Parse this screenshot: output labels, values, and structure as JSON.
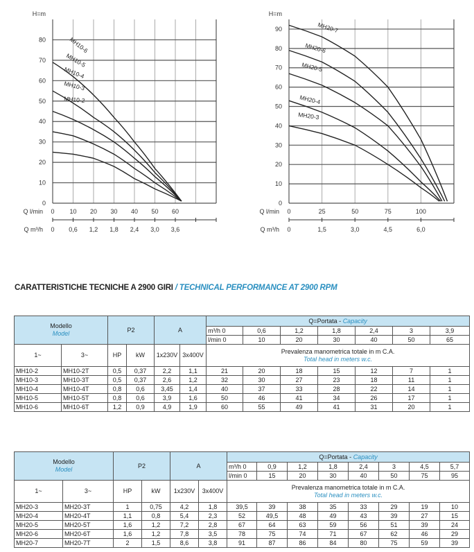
{
  "section_title": {
    "it": "CARATTERISTICHE TECNICHE A 2900 GIRI",
    "en": "/ TECHNICAL PERFORMANCE AT 2900 RPM"
  },
  "colors": {
    "accent": "#2a8fc0",
    "header_bg": "#c6e4f3"
  },
  "chart_data": [
    {
      "type": "line",
      "ylabel": "H=m",
      "xlabel": "Q l/min",
      "x2label": "Q m³/h",
      "ylim": [
        0,
        90
      ],
      "xlim": [
        0,
        80
      ],
      "yticks": [
        "0",
        "10",
        "20",
        "30",
        "40",
        "50",
        "60",
        "70",
        "80"
      ],
      "xticks": [
        "0",
        "10",
        "20",
        "30",
        "40",
        "50",
        "60"
      ],
      "x2ticks": [
        "0",
        "0,6",
        "1,2",
        "1,8",
        "2,4",
        "3,0",
        "3,6"
      ],
      "series": [
        {
          "name": "MH10-6",
          "x": [
            0,
            10,
            20,
            30,
            40,
            50,
            63
          ],
          "y": [
            69,
            62,
            53,
            42,
            30,
            17,
            1
          ]
        },
        {
          "name": "MH10-5",
          "x": [
            0,
            10,
            20,
            30,
            40,
            50,
            63
          ],
          "y": [
            55,
            49,
            42,
            35,
            26,
            15,
            1
          ]
        },
        {
          "name": "MH10-4",
          "x": [
            0,
            10,
            20,
            30,
            40,
            50,
            63
          ],
          "y": [
            45,
            41,
            36,
            30,
            22,
            13,
            1
          ]
        },
        {
          "name": "MH10-3",
          "x": [
            0,
            10,
            20,
            30,
            40,
            50,
            63
          ],
          "y": [
            35,
            33,
            29,
            24,
            17,
            10,
            1
          ]
        },
        {
          "name": "MH10-2",
          "x": [
            0,
            10,
            20,
            30,
            40,
            50,
            63
          ],
          "y": [
            25,
            24,
            22,
            18,
            12,
            7,
            1
          ]
        }
      ]
    },
    {
      "type": "line",
      "ylabel": "H=m",
      "xlabel": "Q l/min",
      "x2label": "Q m³/h",
      "ylim": [
        0,
        95
      ],
      "xlim": [
        0,
        125
      ],
      "yticks": [
        "0",
        "10",
        "20",
        "30",
        "40",
        "50",
        "60",
        "70",
        "80",
        "90"
      ],
      "xticks": [
        "0",
        "25",
        "50",
        "75",
        "100"
      ],
      "x2ticks": [
        "0",
        "1,5",
        "3,0",
        "4,5",
        "6,0"
      ],
      "series": [
        {
          "name": "MH20-7",
          "x": [
            0,
            25,
            50,
            75,
            100,
            120
          ],
          "y": [
            92,
            86,
            76,
            60,
            33,
            1
          ]
        },
        {
          "name": "MH20-6",
          "x": [
            0,
            25,
            50,
            75,
            100,
            118
          ],
          "y": [
            79,
            73,
            63,
            47,
            23,
            1
          ]
        },
        {
          "name": "MH20-5",
          "x": [
            0,
            25,
            50,
            75,
            100,
            116
          ],
          "y": [
            67,
            61,
            52,
            40,
            19,
            1
          ]
        },
        {
          "name": "MH20-4",
          "x": [
            0,
            25,
            50,
            75,
            100,
            115
          ],
          "y": [
            53,
            47,
            39,
            27,
            11,
            1
          ]
        },
        {
          "name": "MH20-3",
          "x": [
            0,
            25,
            50,
            75,
            100,
            114
          ],
          "y": [
            40,
            36,
            30,
            20,
            8,
            1
          ]
        }
      ]
    }
  ],
  "tables": [
    {
      "model_it": "Modello",
      "model_en": "Model",
      "p2": "P2",
      "a": "A",
      "capacity_it": "Q=Portata -",
      "capacity_en": "Capacity",
      "m3h_label": "m³/h 0",
      "lmin_label": "l/min 0",
      "m3h": [
        "0,6",
        "1,2",
        "1,8",
        "2,4",
        "3",
        "3,9"
      ],
      "lmin": [
        "10",
        "20",
        "30",
        "40",
        "50",
        "65"
      ],
      "cols": [
        "1~",
        "3~",
        "HP",
        "kW",
        "1x230V",
        "3x400V"
      ],
      "head_it": "Prevalenza manometrica totale in m C.A.",
      "head_en": "Total head in meters w.c.",
      "rows": [
        [
          "MH10-2",
          "MH10-2T",
          "0,5",
          "0,37",
          "2,2",
          "1,1",
          "21",
          "20",
          "18",
          "15",
          "12",
          "7",
          "1"
        ],
        [
          "MH10-3",
          "MH10-3T",
          "0,5",
          "0,37",
          "2,6",
          "1,2",
          "32",
          "30",
          "27",
          "23",
          "18",
          "11",
          "1"
        ],
        [
          "MH10-4",
          "MH10-4T",
          "0,8",
          "0,6",
          "3,45",
          "1,4",
          "40",
          "37",
          "33",
          "28",
          "22",
          "14",
          "1"
        ],
        [
          "MH10-5",
          "MH10-5T",
          "0,8",
          "0,6",
          "3,9",
          "1,6",
          "50",
          "46",
          "41",
          "34",
          "26",
          "17",
          "1"
        ],
        [
          "MH10-6",
          "MH10-6T",
          "1,2",
          "0,9",
          "4,9",
          "1,9",
          "60",
          "55",
          "49",
          "41",
          "31",
          "20",
          "1"
        ]
      ]
    },
    {
      "model_it": "Modello",
      "model_en": "Model",
      "p2": "P2",
      "a": "A",
      "capacity_it": "Q=Portata -",
      "capacity_en": "Capacity",
      "m3h_label": "m³/h 0",
      "lmin_label": "l/min 0",
      "m3h": [
        "0,9",
        "1,2",
        "1,8",
        "2,4",
        "3",
        "4,5",
        "5,7"
      ],
      "lmin": [
        "15",
        "20",
        "30",
        "40",
        "50",
        "75",
        "95"
      ],
      "cols": [
        "1~",
        "3~",
        "HP",
        "kW",
        "1x230V",
        "3x400V"
      ],
      "head_it": "Prevalenza manometrica totale in m C.A.",
      "head_en": "Total head in meters w.c.",
      "rows": [
        [
          "MH20-3",
          "MH20-3T",
          "1",
          "0,75",
          "4,2",
          "1,8",
          "39,5",
          "39",
          "38",
          "35",
          "33",
          "29",
          "19",
          "10"
        ],
        [
          "MH20-4",
          "MH20-4T",
          "1,1",
          "0,8",
          "5,4",
          "2,3",
          "52",
          "49,5",
          "48",
          "49",
          "43",
          "39",
          "27",
          "15"
        ],
        [
          "MH20-5",
          "MH20-5T",
          "1,6",
          "1,2",
          "7,2",
          "2,8",
          "67",
          "64",
          "63",
          "59",
          "56",
          "51",
          "39",
          "24"
        ],
        [
          "MH20-6",
          "MH20-6T",
          "1,6",
          "1,2",
          "7,8",
          "3,5",
          "78",
          "75",
          "74",
          "71",
          "67",
          "62",
          "46",
          "29"
        ],
        [
          "MH20-7",
          "MH20-7T",
          "2",
          "1,5",
          "8,6",
          "3,8",
          "91",
          "87",
          "86",
          "84",
          "80",
          "75",
          "59",
          "39"
        ]
      ]
    }
  ]
}
